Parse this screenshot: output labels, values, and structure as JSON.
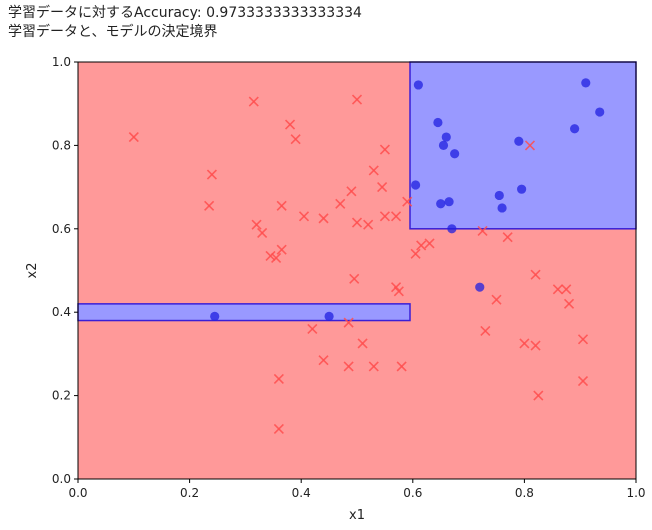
{
  "chart_data": {
    "type": "scatter",
    "title": "学習データに対するAccuracy: 0.9733333333333334",
    "subtitle": "学習データと、モデルの決定境界",
    "xlabel": "x1",
    "ylabel": "x2",
    "xlim": [
      0.0,
      1.0
    ],
    "ylim": [
      0.0,
      1.0
    ],
    "xticks": [
      "0.0",
      "0.2",
      "0.4",
      "0.6",
      "0.8",
      "1.0"
    ],
    "yticks": [
      "0.0",
      "0.2",
      "0.4",
      "0.6",
      "0.8",
      "1.0"
    ],
    "grid": false,
    "colors": {
      "region_neg": "#ff9999",
      "region_pos": "#9999ff",
      "region_edge": "#3a1fd6",
      "point_neg": "#ff4d4d",
      "point_pos": "#2020e0"
    },
    "decision_regions_positive": [
      {
        "x": [
          0.595,
          1.0
        ],
        "y": [
          0.6,
          1.0
        ]
      },
      {
        "x": [
          0.0,
          0.595
        ],
        "y": [
          0.38,
          0.42
        ]
      }
    ],
    "series": [
      {
        "marker": "x",
        "points": [
          [
            0.1,
            0.82
          ],
          [
            0.315,
            0.905
          ],
          [
            0.5,
            0.91
          ],
          [
            0.38,
            0.85
          ],
          [
            0.39,
            0.815
          ],
          [
            0.55,
            0.79
          ],
          [
            0.24,
            0.73
          ],
          [
            0.235,
            0.655
          ],
          [
            0.32,
            0.61
          ],
          [
            0.365,
            0.655
          ],
          [
            0.405,
            0.63
          ],
          [
            0.44,
            0.625
          ],
          [
            0.47,
            0.66
          ],
          [
            0.49,
            0.69
          ],
          [
            0.53,
            0.74
          ],
          [
            0.545,
            0.7
          ],
          [
            0.57,
            0.63
          ],
          [
            0.55,
            0.63
          ],
          [
            0.52,
            0.61
          ],
          [
            0.5,
            0.615
          ],
          [
            0.33,
            0.59
          ],
          [
            0.345,
            0.535
          ],
          [
            0.355,
            0.53
          ],
          [
            0.365,
            0.55
          ],
          [
            0.59,
            0.665
          ],
          [
            0.605,
            0.54
          ],
          [
            0.615,
            0.56
          ],
          [
            0.63,
            0.565
          ],
          [
            0.495,
            0.48
          ],
          [
            0.57,
            0.46
          ],
          [
            0.575,
            0.45
          ],
          [
            0.725,
            0.595
          ],
          [
            0.77,
            0.58
          ],
          [
            0.81,
            0.8
          ],
          [
            0.82,
            0.49
          ],
          [
            0.86,
            0.455
          ],
          [
            0.875,
            0.455
          ],
          [
            0.88,
            0.42
          ],
          [
            0.75,
            0.43
          ],
          [
            0.73,
            0.355
          ],
          [
            0.8,
            0.325
          ],
          [
            0.82,
            0.32
          ],
          [
            0.905,
            0.335
          ],
          [
            0.905,
            0.235
          ],
          [
            0.825,
            0.2
          ],
          [
            0.42,
            0.36
          ],
          [
            0.485,
            0.375
          ],
          [
            0.51,
            0.325
          ],
          [
            0.44,
            0.285
          ],
          [
            0.485,
            0.27
          ],
          [
            0.53,
            0.27
          ],
          [
            0.58,
            0.27
          ],
          [
            0.36,
            0.24
          ],
          [
            0.36,
            0.12
          ]
        ]
      },
      {
        "marker": "o",
        "points": [
          [
            0.61,
            0.945
          ],
          [
            0.91,
            0.95
          ],
          [
            0.645,
            0.855
          ],
          [
            0.66,
            0.82
          ],
          [
            0.655,
            0.8
          ],
          [
            0.675,
            0.78
          ],
          [
            0.79,
            0.81
          ],
          [
            0.89,
            0.84
          ],
          [
            0.935,
            0.88
          ],
          [
            0.605,
            0.705
          ],
          [
            0.65,
            0.66
          ],
          [
            0.665,
            0.665
          ],
          [
            0.755,
            0.68
          ],
          [
            0.795,
            0.695
          ],
          [
            0.76,
            0.65
          ],
          [
            0.67,
            0.6
          ],
          [
            0.72,
            0.46
          ],
          [
            0.245,
            0.39
          ],
          [
            0.45,
            0.39
          ]
        ]
      }
    ]
  }
}
